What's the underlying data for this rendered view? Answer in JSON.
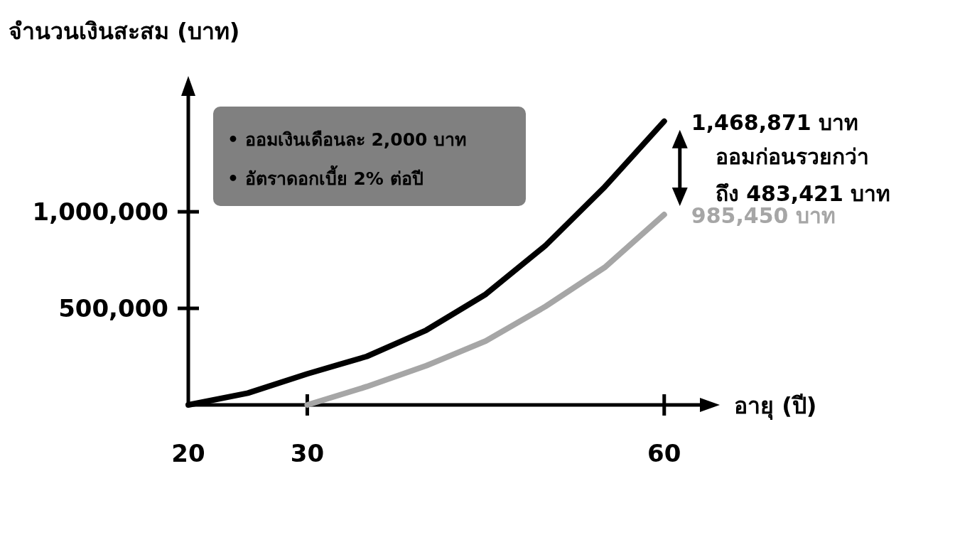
{
  "chart_data": {
    "type": "line",
    "xlabel": "อายุ (ปี)",
    "ylabel": "จำนวนเงินสะสม (บาท)",
    "xlim": [
      20,
      63
    ],
    "xticks": [
      20,
      30,
      60
    ],
    "ylim": [
      0,
      1600000
    ],
    "yticks": [
      {
        "value": 500000,
        "label": "500,000"
      },
      {
        "value": 1000000,
        "label": "1,000,000"
      }
    ],
    "marker": "none",
    "line_style": "solid",
    "series": [
      {
        "color": "#000000",
        "x": [
          20,
          25,
          30,
          35,
          40,
          45,
          50,
          55,
          60
        ],
        "values": [
          0,
          61000,
          161000,
          251000,
          387000,
          573000,
          824000,
          1129000,
          1468871
        ],
        "value_labels": [
          null,
          null,
          null,
          null,
          null,
          null,
          null,
          null,
          "1,468,871 บาท"
        ]
      },
      {
        "color": "#a6a6a6",
        "x": [
          30,
          35,
          40,
          45,
          50,
          55,
          60
        ],
        "values": [
          0,
          95000,
          203000,
          331000,
          509000,
          712000,
          985450
        ],
        "value_labels": [
          null,
          null,
          null,
          null,
          null,
          null,
          "985,450 บาท"
        ]
      }
    ],
    "annotations": [
      "• ออมเงินเดือนละ 2,000 บาท",
      "• อัตราดอกเบี้ย 2% ต่อปี",
      "ออมก่อนรวยกว่า ถึง 483,421 บาท"
    ]
  }
}
